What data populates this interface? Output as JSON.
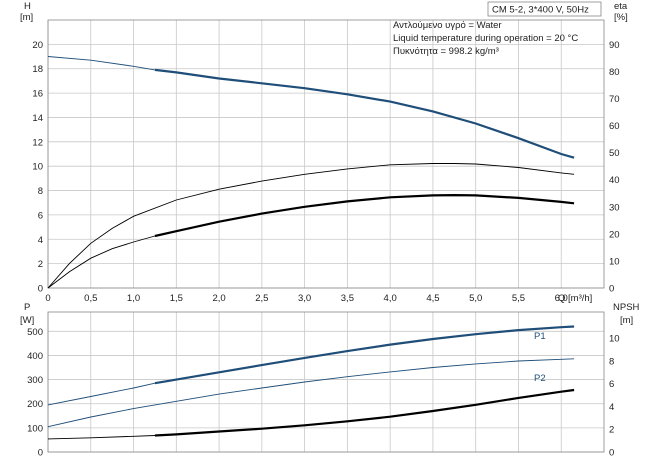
{
  "chart_data": [
    {
      "type": "line",
      "panel": "top",
      "header": "CM 5-2, 3*400 V, 50Hz",
      "annotations": [
        "Αντλούμενο υγρό = Water",
        "Liquid temperature during operation = 20 °C",
        "Πυκνότητα = 998.2 kg/m³"
      ],
      "y_left_label": "H",
      "y_left_unit": "[m]",
      "y_right_label": "eta",
      "y_right_unit": "[%]",
      "x_label": "Q [m³/h]",
      "xlim": [
        0,
        6.5
      ],
      "ylim_left": [
        0,
        22
      ],
      "ylim_right": [
        0,
        99
      ],
      "x_ticks": [
        0,
        0.5,
        1.0,
        1.5,
        2.0,
        2.5,
        3.0,
        3.5,
        4.0,
        4.5,
        5.0,
        5.5,
        6.0
      ],
      "x_tick_labels": [
        "0",
        "0,5",
        "1,0",
        "1,5",
        "2,0",
        "2,5",
        "3,0",
        "3,5",
        "4,0",
        "4,5",
        "5,0",
        "5,5",
        "6,0"
      ],
      "y_left_ticks": [
        0,
        2,
        4,
        6,
        8,
        10,
        12,
        14,
        16,
        18,
        20
      ],
      "y_right_ticks": [
        0,
        10,
        20,
        30,
        40,
        50,
        60,
        70,
        80,
        90
      ],
      "grid": true,
      "series": [
        {
          "axis": "left",
          "color": "#1f4e79",
          "style": "bold_from",
          "bold_from_x": 1.25,
          "x": [
            0,
            0.5,
            1.0,
            1.25,
            1.5,
            2.0,
            2.5,
            3.0,
            3.5,
            4.0,
            4.5,
            5.0,
            5.5,
            6.0,
            6.15
          ],
          "y": [
            19.0,
            18.7,
            18.2,
            17.9,
            17.7,
            17.2,
            16.8,
            16.4,
            15.9,
            15.3,
            14.5,
            13.5,
            12.3,
            11.0,
            10.7
          ]
        },
        {
          "axis": "right",
          "color": "#000000",
          "style": "thin",
          "x": [
            0,
            0.25,
            0.5,
            0.75,
            1.0,
            1.5,
            2.0,
            2.5,
            3.0,
            3.5,
            4.0,
            4.5,
            4.75,
            5.0,
            5.5,
            6.0,
            6.15
          ],
          "y": [
            0,
            9,
            16.5,
            22,
            26.5,
            32.5,
            36.5,
            39.5,
            42,
            44,
            45.5,
            46,
            46,
            45.8,
            44.5,
            42.5,
            42
          ]
        },
        {
          "axis": "right",
          "color": "#000000",
          "style": "bold_from",
          "bold_from_x": 1.25,
          "x": [
            0,
            0.25,
            0.5,
            0.75,
            1.0,
            1.25,
            1.5,
            2.0,
            2.5,
            3.0,
            3.5,
            4.0,
            4.5,
            4.75,
            5.0,
            5.5,
            6.0,
            6.15
          ],
          "y": [
            0,
            6,
            11,
            14.5,
            17,
            19.2,
            21,
            24.5,
            27.5,
            30,
            32,
            33.5,
            34.2,
            34.3,
            34.2,
            33.3,
            31.8,
            31.3
          ]
        }
      ]
    },
    {
      "type": "line",
      "panel": "bottom",
      "y_left_label": "P",
      "y_left_unit": "[W]",
      "y_right_label": "NPSH",
      "y_right_unit": "[m]",
      "xlim": [
        0,
        6.5
      ],
      "ylim_left": [
        0,
        580
      ],
      "ylim_right": [
        0,
        12.3
      ],
      "y_left_ticks": [
        0,
        100,
        200,
        300,
        400,
        500
      ],
      "y_right_ticks": [
        0,
        2,
        4,
        6,
        8,
        10
      ],
      "grid": true,
      "series": [
        {
          "name": "P1",
          "axis": "left",
          "color": "#1f4e79",
          "style": "bold_from",
          "bold_from_x": 1.25,
          "x": [
            0,
            0.5,
            1.0,
            1.25,
            1.5,
            2.0,
            2.5,
            3.0,
            3.5,
            4.0,
            4.5,
            5.0,
            5.5,
            6.0,
            6.15
          ],
          "y": [
            195,
            230,
            265,
            285,
            300,
            330,
            360,
            390,
            418,
            445,
            468,
            488,
            505,
            517,
            520
          ]
        },
        {
          "name": "P2",
          "axis": "left",
          "color": "#1f4e79",
          "style": "thin",
          "x": [
            0,
            0.5,
            1.0,
            1.5,
            2.0,
            2.5,
            3.0,
            3.5,
            4.0,
            4.5,
            5.0,
            5.5,
            6.0,
            6.15
          ],
          "y": [
            105,
            145,
            180,
            210,
            240,
            265,
            290,
            312,
            332,
            350,
            365,
            377,
            384,
            386
          ]
        },
        {
          "axis": "right",
          "color": "#000000",
          "style": "bold_from",
          "bold_from_x": 1.25,
          "x": [
            0,
            0.5,
            1.0,
            1.25,
            1.5,
            2.0,
            2.5,
            3.0,
            3.5,
            4.0,
            4.5,
            5.0,
            5.5,
            6.0,
            6.15
          ],
          "y": [
            1.15,
            1.25,
            1.38,
            1.45,
            1.55,
            1.8,
            2.05,
            2.35,
            2.7,
            3.1,
            3.6,
            4.15,
            4.75,
            5.3,
            5.45
          ]
        }
      ]
    }
  ]
}
